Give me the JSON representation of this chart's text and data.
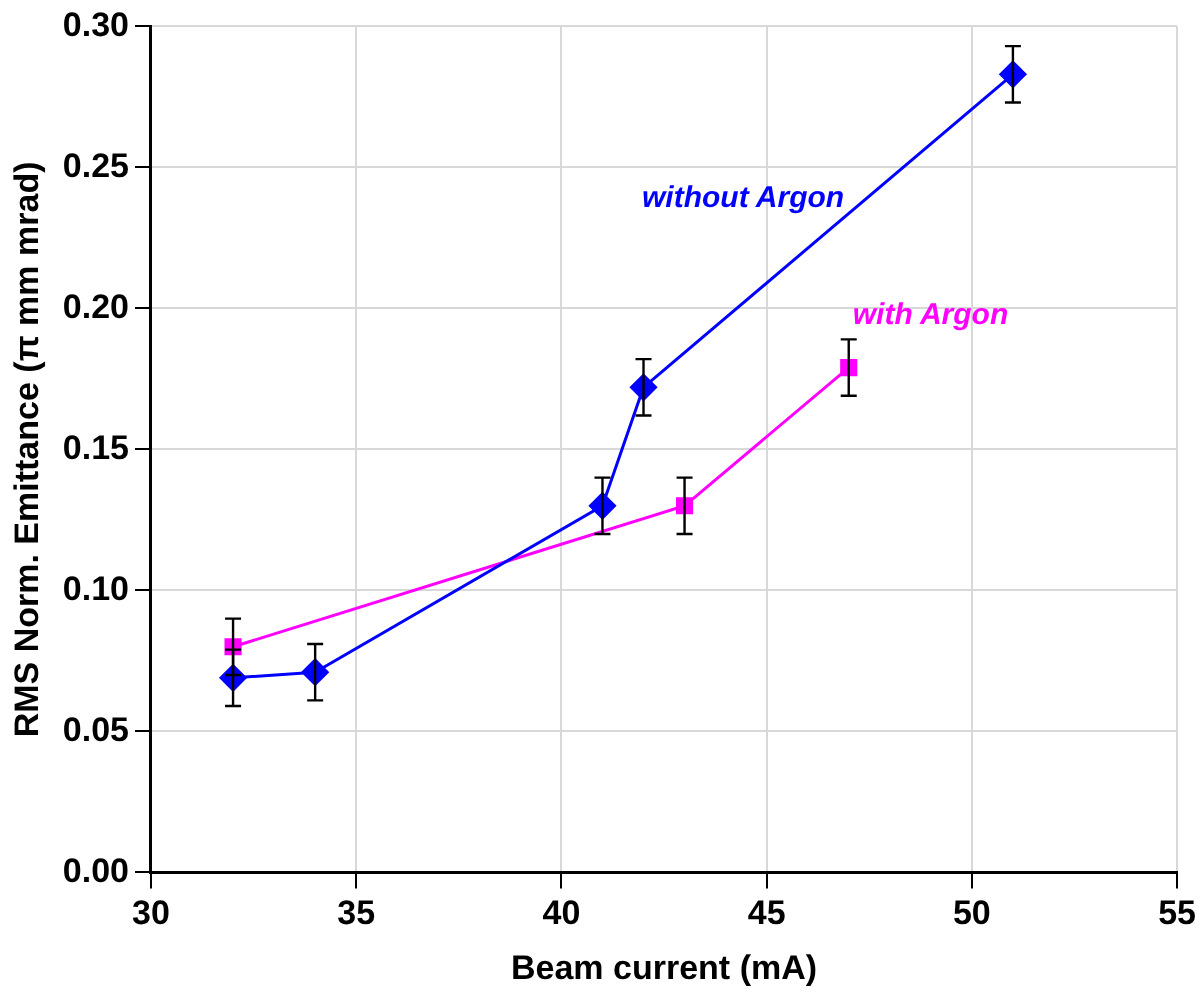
{
  "chart_data": {
    "type": "line",
    "xlabel": "Beam current (mA)",
    "ylabel": "RMS Norm. Emittance (π mm mrad)",
    "xlim": [
      30,
      55
    ],
    "xticks": [
      30,
      35,
      40,
      45,
      50,
      55
    ],
    "ylim": [
      0,
      0.3
    ],
    "yticks": [
      {
        "value": 0,
        "label": "0.00"
      },
      {
        "value": 0.05,
        "label": "0.05"
      },
      {
        "value": 0.1,
        "label": "0.10"
      },
      {
        "value": 0.15,
        "label": "0.15"
      },
      {
        "value": 0.2,
        "label": "0.20"
      },
      {
        "value": 0.25,
        "label": "0.25"
      },
      {
        "value": 0.3,
        "label": "0.30"
      }
    ],
    "grid": true,
    "legend": false,
    "line_style": "solid",
    "series": [
      {
        "name": "without Argon",
        "color": "#0000ff",
        "marker": "diamond",
        "x": [
          32,
          34,
          41,
          42,
          51
        ],
        "values": [
          0.069,
          0.071,
          0.13,
          0.172,
          0.283
        ],
        "errors": [
          0.01,
          0.01,
          0.01,
          0.01,
          0.01
        ]
      },
      {
        "name": "with Argon",
        "color": "#ff00ff",
        "marker": "square",
        "x": [
          32,
          43,
          47
        ],
        "values": [
          0.08,
          0.13,
          0.179
        ],
        "errors": [
          0.01,
          0.01,
          0.01
        ]
      }
    ]
  }
}
